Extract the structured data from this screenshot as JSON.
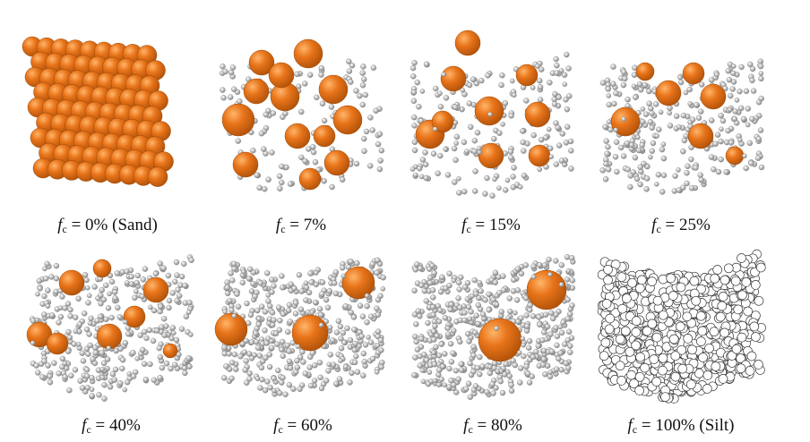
{
  "panels": [
    {
      "symbol": "f",
      "subscript": "c",
      "text": " = 0% (Sand)",
      "fines_percent": 0
    },
    {
      "symbol": "f",
      "subscript": "c",
      "text": " = 7%",
      "fines_percent": 7
    },
    {
      "symbol": "f",
      "subscript": "c",
      "text": " = 15%",
      "fines_percent": 15
    },
    {
      "symbol": "f",
      "subscript": "c",
      "text": " = 25%",
      "fines_percent": 25
    },
    {
      "symbol": "f",
      "subscript": "c",
      "text": " = 40%",
      "fines_percent": 40
    },
    {
      "symbol": "f",
      "subscript": "c",
      "text": " = 60%",
      "fines_percent": 60
    },
    {
      "symbol": "f",
      "subscript": "c",
      "text": " = 80%",
      "fines_percent": 80
    },
    {
      "symbol": "f",
      "subscript": "c",
      "text": " = 100% (Silt)",
      "fines_percent": 100
    }
  ],
  "colors": {
    "sand": "#e8741a",
    "sand_dark": "#b4540a",
    "silt": "#d4d4d4",
    "silt_outline": "#555555"
  }
}
